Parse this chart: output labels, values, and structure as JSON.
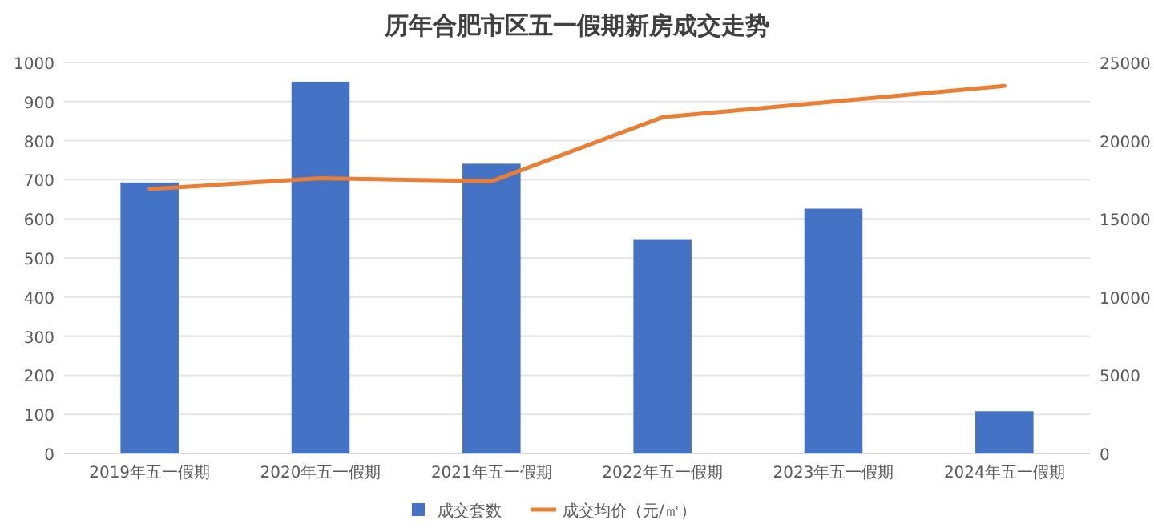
{
  "chart_data": {
    "type": "bar",
    "title": "历年合肥市区五一假期新房成交走势",
    "categories": [
      "2019年五一假期",
      "2020年五一假期",
      "2021年五一假期",
      "2022年五一假期",
      "2023年五一假期",
      "2024年五一假期"
    ],
    "series": [
      {
        "name": "成交套数",
        "color": "#4472c4",
        "values": [
          693,
          951,
          741,
          548,
          626,
          108
        ]
      },
      {
        "name": "成交均价（元/㎡）",
        "type": "line",
        "axis": "y2",
        "color": "#ed7d31",
        "values": [
          16900,
          17600,
          17400,
          21500,
          22500,
          23500
        ]
      }
    ],
    "ylim": [
      0,
      1000
    ],
    "yticks": [
      0,
      100,
      200,
      300,
      400,
      500,
      600,
      700,
      800,
      900,
      1000
    ],
    "y2lim": [
      0,
      25000
    ],
    "y2ticks": [
      0,
      5000,
      10000,
      15000,
      20000,
      25000
    ],
    "grid": "y",
    "legend": "bottom",
    "marker": "none",
    "line_style": "solid"
  }
}
